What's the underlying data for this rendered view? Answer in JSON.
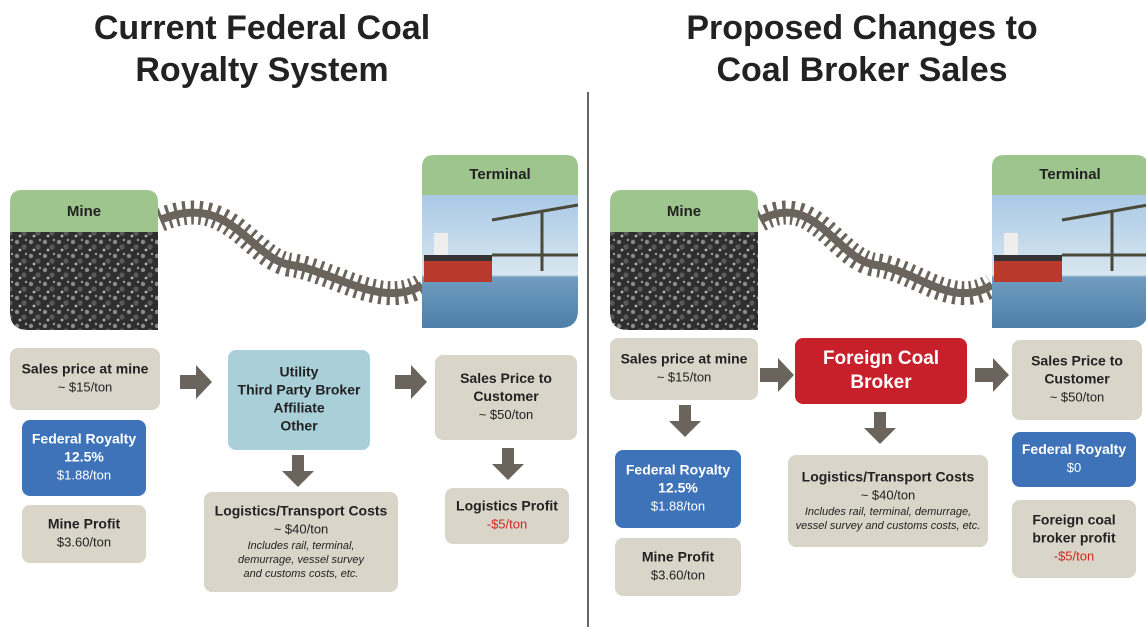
{
  "left": {
    "title": [
      "Current Federal Coal",
      "Royalty System"
    ],
    "mine": "Mine",
    "terminal": "Terminal",
    "boxes": [
      {
        "lines": [
          "Sales price at mine",
          "~ $15/ton"
        ]
      },
      {
        "lines": [
          "Federal Royalty",
          "12.5%",
          "$1.88/ton"
        ]
      },
      {
        "lines": [
          "Mine Profit",
          "$3.60/ton"
        ]
      },
      {
        "lines": [
          "Utility",
          "Third Party Broker",
          "Affiliate",
          "Other"
        ]
      },
      {
        "lines": [
          "Logistics/Transport Costs",
          "~ $40/ton",
          "Includes rail, terminal,",
          "demurrage, vessel survey",
          "and customs costs, etc."
        ]
      },
      {
        "lines": [
          "Sales Price to",
          "Customer",
          "~ $50/ton"
        ]
      },
      {
        "lines": [
          "Logistics Profit",
          "-$5/ton"
        ]
      }
    ]
  },
  "right": {
    "title": [
      "Proposed Changes to",
      "Coal Broker Sales"
    ],
    "mine": "Mine",
    "terminal": "Terminal",
    "boxes": [
      {
        "lines": [
          "Sales price at mine",
          "~ $15/ton"
        ]
      },
      {
        "lines": [
          "Federal Royalty",
          "12.5%",
          "$1.88/ton"
        ]
      },
      {
        "lines": [
          "Mine Profit",
          "$3.60/ton"
        ]
      },
      {
        "lines": [
          "Foreign Coal",
          "Broker"
        ]
      },
      {
        "lines": [
          "Logistics/Transport Costs",
          "~ $40/ton",
          "Includes rail, terminal, demurrage,",
          "vessel survey and customs costs, etc."
        ]
      },
      {
        "lines": [
          "Sales Price to",
          "Customer",
          "~ $50/ton"
        ]
      },
      {
        "lines": [
          "Federal Royalty",
          "$0"
        ]
      },
      {
        "lines": [
          "Foreign coal",
          "broker profit",
          "-$5/ton"
        ]
      }
    ]
  }
}
